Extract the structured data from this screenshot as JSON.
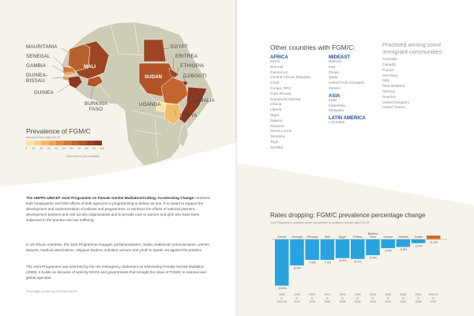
{
  "left_page": {
    "map_labels": {
      "mauritania": "MAURITANIA",
      "senegal": "SENEGAL",
      "gambia": "GAMBIA",
      "guinea_bissau": "GUINEA-\nBISSAU",
      "guinea": "GUINEA",
      "mali": "MALI",
      "burkina_faso": "BURKINA\nFASO",
      "egypt": "EGYPT",
      "eritrea": "ERITREA",
      "ethiopia": "ETHIOPIA",
      "sudan": "SUDAN",
      "djibouti": "DJIBOUTI",
      "uganda": "UGANDA",
      "somalia": "SOMALIA",
      "kenya": "KENYA"
    },
    "legend": {
      "title": "Prevalence of FGM/C",
      "subtitle": "among women aged 15–49",
      "ticks": [
        "0",
        "10",
        "20",
        "30",
        "40",
        "50",
        "60",
        "70",
        "80",
        "90",
        "100"
      ],
      "colors": [
        "#fbe3a8",
        "#f8d189",
        "#f3ba6a",
        "#eca453",
        "#e08e42",
        "#d47837",
        "#c4652f",
        "#b25428",
        "#9e4523",
        "#8a381e"
      ],
      "note": "Most recent year available"
    },
    "intro": {
      "bold_heading": "The UNFPA-UNICEF Joint Programme on Female Genital Mutilation/Cutting: Accelerating Change",
      "p1_rest": " combines both headquarter and field offices of both agencies in programming to deliver as one. It is meant to support the development and implementation of policies and programmes, to reinforce the efforts of national partners, development partners and civil society organizations and to provide care to women and girls who have been subjected to the practice and are suffering.",
      "p2": "In 15 African countries, the Joint Programme engages parliamentarians, media, traditional communicators, women lawyers, medical associations, religious leaders, scholars' women and youth to speak out against the practice.",
      "p3": "The Joint Programme was informed by the UN Interagency Statement on Eliminating Female Genital Mutilation (2008). It builds on decades of work by NGOs and governments that brought the issue of FGM/C to national and global agendas."
    },
    "source": "Percentages provided by UNFPA and UNICEF"
  },
  "right_page": {
    "other_countries": {
      "heading": "Other countries with FGM/C:",
      "africa": {
        "title": "AFRICA",
        "items": [
          "Benin",
          "Burundi",
          "Cameroon",
          "Central African Republic",
          "Chad",
          "Congo, DRC",
          "Cote d'Ivoire",
          "Equatorial Guinea",
          "Ghana",
          "Liberia",
          "Niger",
          "Nigeria",
          "Rwanda",
          "Sierra Leone",
          "Tanzania",
          "Togo",
          "Zambia"
        ]
      },
      "mideast": {
        "title": "MIDEAST",
        "items": [
          "Bahrain",
          "Iraq",
          "Oman",
          "Qatar",
          "United Arab Emirates",
          "Yemen"
        ]
      },
      "asia": {
        "title": "ASIA",
        "items": [
          "India",
          "Indonesia",
          "Malaysia"
        ]
      },
      "latin_america": {
        "title": "LATIN AMERICA",
        "items": [
          "Colombia"
        ]
      },
      "immigrant": {
        "heading": "Practised among some immigrant communities:",
        "items": [
          "Australia",
          "Canada",
          "France",
          "Germany",
          "Italy",
          "New Zealand",
          "Norway",
          "Sweden",
          "United Kingdom",
          "United States"
        ]
      }
    },
    "chart_title": "Rates dropping: FGM/C prevalence percentage change",
    "chart_subtitle": "Joint Programme countries where comparison is available; women aged 15–49"
  },
  "chart_data": {
    "type": "bar",
    "categories": [
      "Kenya",
      "Senegal",
      "Ethiopia",
      "Mali",
      "Egypt",
      "Eritrea",
      "Burkina Faso",
      "Guinea",
      "Gambia",
      "Sudan",
      "Mauritania"
    ],
    "category_labels": [
      "Kenya",
      "Senegal",
      "Ethiopia",
      "Mali",
      "Egypt",
      "Eritrea",
      "Burkina\nFaso",
      "Guinea",
      "Gambia",
      "Sudan",
      "Mauritania"
    ],
    "years": [
      "2003\nto\n2008-09",
      "2005\nto\n2010",
      "2000\nto\n2005",
      "2001\nto\n2006",
      "2000\nto\n2008",
      "1995\nto\n2002",
      "2003\nto\n2006",
      "1999\nto\n2005",
      "2005\nto\n2010",
      "2000\nto\n2006",
      "2000-01\nto\n2007"
    ],
    "values": [
      -15.8,
      -8.9,
      -7.0,
      -7.0,
      -6.4,
      -6.7,
      -5.4,
      -3.0,
      -2.6,
      -1.3,
      1.3
    ],
    "value_labels": [
      "-15.8%",
      "-8.9%",
      "-7.0%",
      "-7.0%",
      "-6.4%",
      "-6.7%",
      "-5.4%",
      "-3.0%",
      "-2.6%",
      "-1.3%",
      "+1.3%"
    ],
    "colors": {
      "negative": "#29a3e0",
      "positive": "#f07b22"
    },
    "ylim": [
      -17,
      2
    ]
  }
}
